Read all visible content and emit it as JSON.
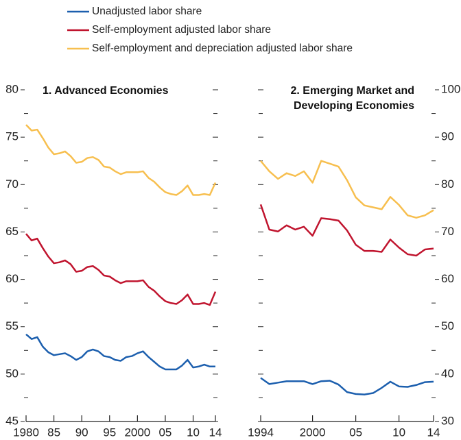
{
  "chart_data": [
    {
      "type": "line",
      "title": "1. Advanced Economies",
      "axis_side": "left",
      "x": [
        1980,
        1981,
        1982,
        1983,
        1984,
        1985,
        1986,
        1987,
        1988,
        1989,
        1990,
        1991,
        1992,
        1993,
        1994,
        1995,
        1996,
        1997,
        1998,
        1999,
        2000,
        2001,
        2002,
        2003,
        2004,
        2005,
        2006,
        2007,
        2008,
        2009,
        2010,
        2011,
        2012,
        2013,
        2014
      ],
      "xlim": [
        1980,
        2014
      ],
      "xticks": [
        1980,
        {
          "value": 1985,
          "label": "85"
        },
        {
          "value": 1990,
          "label": "90"
        },
        {
          "value": 1995,
          "label": "95"
        },
        2000,
        {
          "value": 2005,
          "label": "05"
        },
        {
          "value": 2010,
          "label": "10"
        },
        {
          "value": 2014,
          "label": "14"
        }
      ],
      "ylim": [
        45,
        80
      ],
      "yticks": [
        45,
        50,
        55,
        60,
        65,
        70,
        75,
        80
      ],
      "yminorticks": [
        47.5,
        52.5,
        57.5,
        62.5,
        67.5,
        72.5,
        77.5
      ],
      "series": [
        {
          "name": "Unadjusted labor share",
          "color": "#1c5fae",
          "values": [
            54.2,
            53.7,
            53.9,
            52.9,
            52.3,
            52.0,
            52.1,
            52.2,
            51.9,
            51.5,
            51.8,
            52.4,
            52.6,
            52.4,
            51.9,
            51.8,
            51.5,
            51.4,
            51.8,
            51.9,
            52.2,
            52.4,
            51.8,
            51.3,
            50.8,
            50.5,
            50.5,
            50.5,
            50.9,
            51.5,
            50.7,
            50.8,
            51.0,
            50.8,
            50.8
          ]
        },
        {
          "name": "Self-employment adjusted labor share",
          "color": "#c0142e",
          "values": [
            64.8,
            64.1,
            64.3,
            63.3,
            62.4,
            61.7,
            61.8,
            62.0,
            61.6,
            60.8,
            60.9,
            61.3,
            61.4,
            61.0,
            60.4,
            60.3,
            59.9,
            59.6,
            59.8,
            59.8,
            59.8,
            59.9,
            59.2,
            58.8,
            58.2,
            57.7,
            57.5,
            57.4,
            57.8,
            58.4,
            57.4,
            57.4,
            57.5,
            57.3,
            58.7
          ]
        },
        {
          "name": "Self-employment and depreciation adjusted labor share",
          "color": "#f7bf4f",
          "values": [
            76.3,
            75.7,
            75.8,
            74.9,
            73.9,
            73.2,
            73.3,
            73.5,
            73.0,
            72.3,
            72.4,
            72.8,
            72.9,
            72.6,
            71.9,
            71.8,
            71.4,
            71.1,
            71.3,
            71.3,
            71.3,
            71.4,
            70.7,
            70.3,
            69.7,
            69.2,
            69.0,
            68.9,
            69.3,
            69.9,
            68.9,
            68.9,
            69.0,
            68.9,
            70.2
          ]
        }
      ]
    },
    {
      "type": "line",
      "title": "2. Emerging Market and Developing Economies",
      "axis_side": "right",
      "x": [
        1994,
        1995,
        1996,
        1997,
        1998,
        1999,
        2000,
        2001,
        2002,
        2003,
        2004,
        2005,
        2006,
        2007,
        2008,
        2009,
        2010,
        2011,
        2012,
        2013,
        2014
      ],
      "xlim": [
        1994,
        2014
      ],
      "xticks": [
        1994,
        2000,
        {
          "value": 2005,
          "label": "05"
        },
        {
          "value": 2010,
          "label": "10"
        },
        {
          "value": 2014,
          "label": "14"
        }
      ],
      "ylim": [
        30,
        100
      ],
      "yticks": [
        30,
        40,
        50,
        60,
        70,
        80,
        90,
        100
      ],
      "yminorticks": [
        35,
        45,
        55,
        65,
        75,
        85,
        95
      ],
      "series": [
        {
          "name": "Unadjusted labor share",
          "color": "#1c5fae",
          "values": [
            39.2,
            37.9,
            38.2,
            38.5,
            38.5,
            38.5,
            37.9,
            38.5,
            38.6,
            37.8,
            36.2,
            35.8,
            35.7,
            36.0,
            37.1,
            38.4,
            37.4,
            37.3,
            37.7,
            38.3,
            38.4
          ]
        },
        {
          "name": "Self-employment adjusted labor share",
          "color": "#c0142e",
          "values": [
            75.8,
            70.5,
            70.1,
            71.4,
            70.5,
            71.1,
            69.2,
            72.9,
            72.7,
            72.4,
            70.3,
            67.3,
            66.0,
            66.0,
            65.8,
            68.4,
            66.7,
            65.3,
            65.0,
            66.3,
            66.5
          ]
        },
        {
          "name": "Self-employment and depreciation adjusted labor share",
          "color": "#f7bf4f",
          "values": [
            85.0,
            82.8,
            81.2,
            82.4,
            81.8,
            82.8,
            80.4,
            85.0,
            84.4,
            83.8,
            80.9,
            77.3,
            75.6,
            75.2,
            74.8,
            77.4,
            75.7,
            73.5,
            73.0,
            73.5,
            74.6
          ]
        }
      ]
    }
  ]
}
